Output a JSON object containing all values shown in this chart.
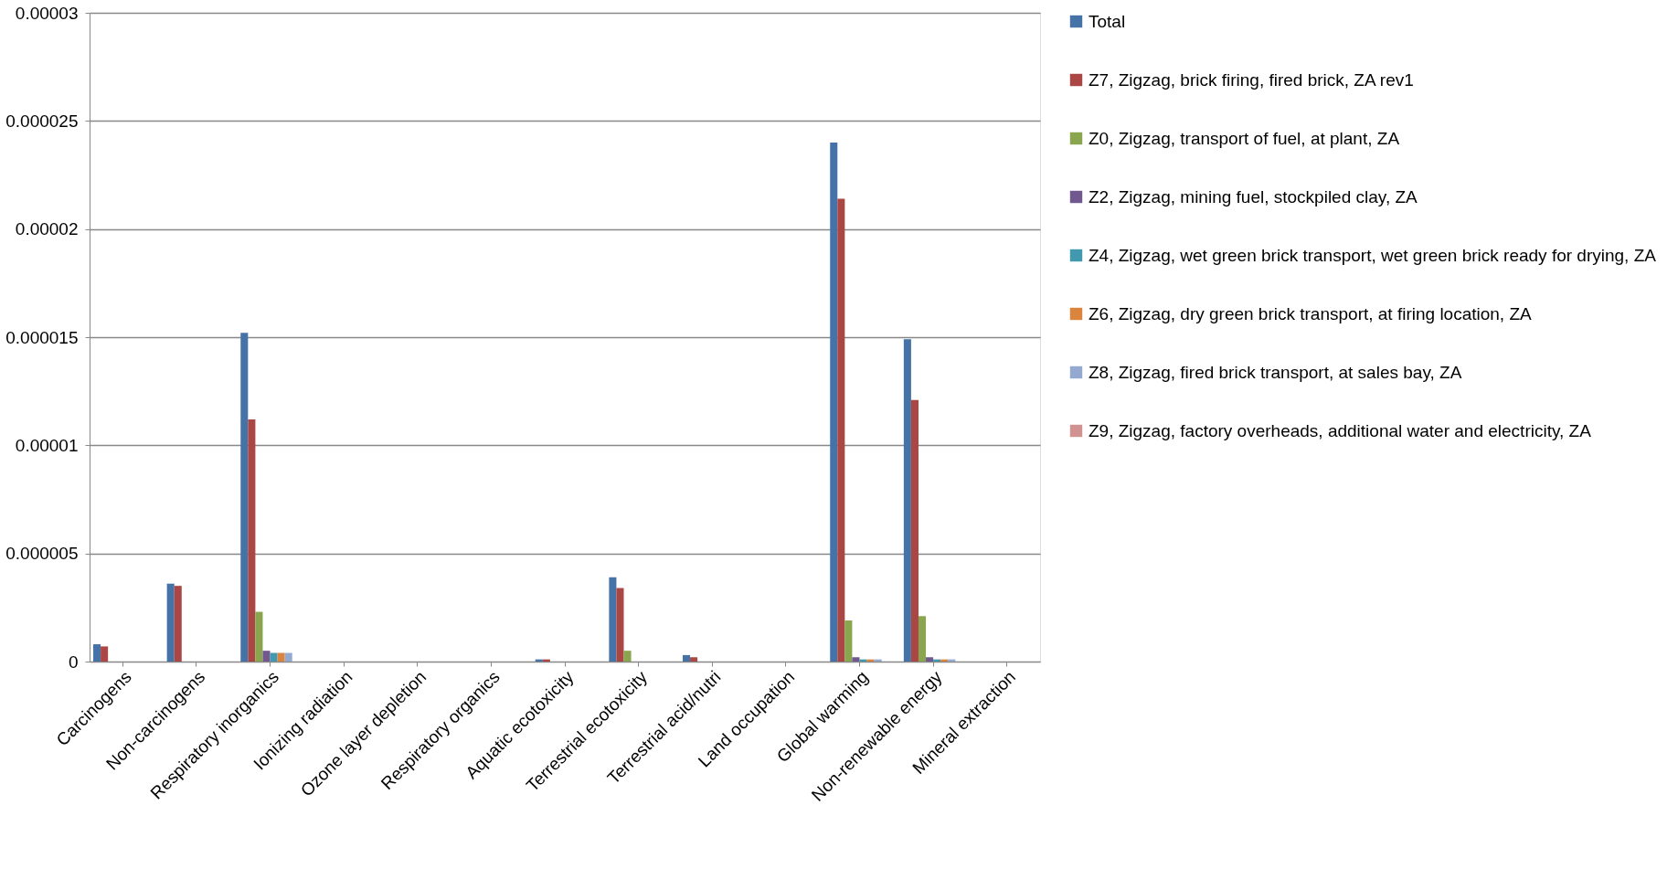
{
  "chart_data": {
    "type": "bar",
    "categories": [
      "Carcinogens",
      "Non-carcinogens",
      "Respiratory inorganics",
      "Ionizing radiation",
      "Ozone layer depletion",
      "Respiratory organics",
      "Aquatic ecotoxicity",
      "Terrestrial ecotoxicity",
      "Terrestrial acid/nutri",
      "Land occupation",
      "Global warming",
      "Non-renewable energy",
      "Mineral extraction"
    ],
    "series": [
      {
        "name": "Total",
        "color": "#4572a7",
        "values": [
          8e-07,
          3.6e-06,
          1.52e-05,
          null,
          null,
          null,
          1e-07,
          3.9e-06,
          3e-07,
          null,
          2.4e-05,
          1.49e-05,
          null
        ]
      },
      {
        "name": "Z7, Zigzag, brick firing, fired brick, ZA rev1",
        "color": "#aa4643",
        "values": [
          7e-07,
          3.5e-06,
          1.12e-05,
          null,
          null,
          null,
          1e-07,
          3.4e-06,
          2e-07,
          null,
          2.14e-05,
          1.21e-05,
          null
        ]
      },
      {
        "name": "Z0, Zigzag, transport of fuel, at plant, ZA",
        "color": "#89a54e",
        "values": [
          null,
          null,
          2.3e-06,
          null,
          null,
          null,
          null,
          5e-07,
          null,
          null,
          1.9e-06,
          2.1e-06,
          null
        ]
      },
      {
        "name": "Z2, Zigzag, mining fuel, stockpiled clay, ZA",
        "color": "#71588f",
        "values": [
          null,
          null,
          5e-07,
          null,
          null,
          null,
          null,
          null,
          null,
          null,
          2e-07,
          2e-07,
          null
        ]
      },
      {
        "name": "Z4, Zigzag, wet green brick transport, wet green brick ready for drying, ZA",
        "color": "#4198af",
        "values": [
          null,
          null,
          4e-07,
          null,
          null,
          null,
          null,
          null,
          null,
          null,
          1e-07,
          1e-07,
          null
        ]
      },
      {
        "name": "Z6, Zigzag, dry green brick transport, at firing location, ZA",
        "color": "#db843d",
        "values": [
          null,
          null,
          4e-07,
          null,
          null,
          null,
          null,
          null,
          null,
          null,
          1e-07,
          1e-07,
          null
        ]
      },
      {
        "name": "Z8, Zigzag, fired brick transport, at sales bay, ZA",
        "color": "#93a9cf",
        "values": [
          null,
          null,
          4e-07,
          null,
          null,
          null,
          null,
          null,
          null,
          null,
          1e-07,
          1e-07,
          null
        ]
      },
      {
        "name": "Z9, Zigzag, factory overheads, additional water and electricity, ZA",
        "color": "#d19392",
        "values": [
          null,
          null,
          null,
          null,
          null,
          null,
          null,
          null,
          null,
          null,
          null,
          null,
          null
        ]
      }
    ],
    "ylim": [
      0,
      3e-05
    ],
    "yticks": [
      0,
      {
        "value": 5e-06,
        "label": "0.000005"
      },
      {
        "value": 1e-05,
        "label": "0.00001"
      },
      {
        "value": 1.5e-05,
        "label": "0.000015"
      },
      {
        "value": 2e-05,
        "label": "0.00002"
      },
      {
        "value": 2.5e-05,
        "label": "0.000025"
      },
      {
        "value": 3e-05,
        "label": "0.00003"
      }
    ],
    "grid": "y",
    "legend": "right"
  }
}
